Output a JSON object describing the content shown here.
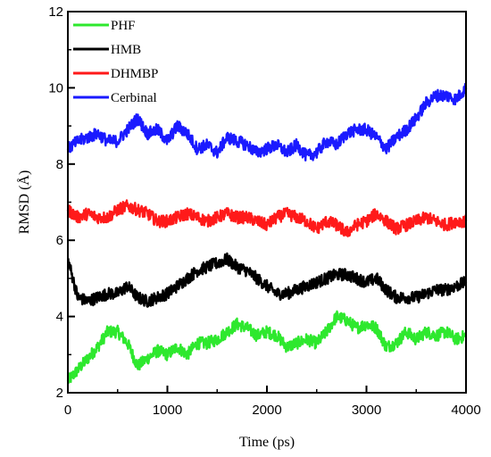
{
  "chart_data": {
    "type": "line",
    "xlabel": "Time (ps)",
    "ylabel": "RMSD (Å)",
    "xlim": [
      0,
      4000
    ],
    "ylim": [
      2,
      12
    ],
    "xticks": [
      "0",
      "1000",
      "2000",
      "3000",
      "4000"
    ],
    "yticks": [
      "2",
      "4",
      "6",
      "8",
      "10",
      "12"
    ],
    "legend_position": "top-left",
    "grid": false,
    "series": [
      {
        "name": "PHF",
        "color": "#2ee82e",
        "x": [
          0,
          100,
          200,
          300,
          400,
          500,
          600,
          700,
          800,
          900,
          1000,
          1100,
          1200,
          1300,
          1400,
          1500,
          1600,
          1700,
          1800,
          1900,
          2000,
          2100,
          2200,
          2300,
          2400,
          2500,
          2600,
          2700,
          2800,
          2900,
          3000,
          3100,
          3200,
          3300,
          3400,
          3500,
          3600,
          3700,
          3800,
          3900,
          4000
        ],
        "y": [
          2.3,
          2.6,
          2.9,
          3.2,
          3.6,
          3.6,
          3.3,
          2.7,
          2.9,
          3.1,
          3.0,
          3.2,
          3.0,
          3.3,
          3.3,
          3.4,
          3.6,
          3.8,
          3.7,
          3.5,
          3.6,
          3.5,
          3.2,
          3.3,
          3.4,
          3.3,
          3.6,
          4.0,
          3.9,
          3.7,
          3.8,
          3.7,
          3.2,
          3.3,
          3.6,
          3.4,
          3.6,
          3.5,
          3.6,
          3.4,
          3.5
        ]
      },
      {
        "name": "HMB",
        "color": "#000000",
        "x": [
          0,
          100,
          200,
          300,
          400,
          500,
          600,
          700,
          800,
          900,
          1000,
          1100,
          1200,
          1300,
          1400,
          1500,
          1600,
          1700,
          1800,
          1900,
          2000,
          2100,
          2200,
          2300,
          2400,
          2500,
          2600,
          2700,
          2800,
          2900,
          3000,
          3100,
          3200,
          3300,
          3400,
          3500,
          3600,
          3700,
          3800,
          3900,
          4000
        ],
        "y": [
          5.5,
          4.5,
          4.4,
          4.5,
          4.6,
          4.6,
          4.8,
          4.5,
          4.4,
          4.5,
          4.6,
          4.8,
          5.0,
          5.2,
          5.3,
          5.4,
          5.5,
          5.3,
          5.2,
          5.0,
          4.8,
          4.6,
          4.6,
          4.7,
          4.8,
          4.9,
          5.0,
          5.1,
          5.1,
          5.0,
          4.9,
          5.0,
          4.7,
          4.5,
          4.5,
          4.5,
          4.6,
          4.7,
          4.7,
          4.8,
          4.9
        ]
      },
      {
        "name": "DHMBP",
        "color": "#ff1a1a",
        "x": [
          0,
          100,
          200,
          300,
          400,
          500,
          600,
          700,
          800,
          900,
          1000,
          1100,
          1200,
          1300,
          1400,
          1500,
          1600,
          1700,
          1800,
          1900,
          2000,
          2100,
          2200,
          2300,
          2400,
          2500,
          2600,
          2700,
          2800,
          2900,
          3000,
          3100,
          3200,
          3300,
          3400,
          3500,
          3600,
          3700,
          3800,
          3900,
          4000
        ],
        "y": [
          6.8,
          6.6,
          6.7,
          6.6,
          6.6,
          6.8,
          6.9,
          6.8,
          6.7,
          6.5,
          6.5,
          6.6,
          6.7,
          6.6,
          6.5,
          6.6,
          6.7,
          6.6,
          6.6,
          6.5,
          6.4,
          6.6,
          6.7,
          6.6,
          6.5,
          6.3,
          6.5,
          6.4,
          6.2,
          6.4,
          6.5,
          6.7,
          6.5,
          6.3,
          6.4,
          6.5,
          6.6,
          6.5,
          6.4,
          6.5,
          6.5
        ]
      },
      {
        "name": "Cerbinal",
        "color": "#1a1aff",
        "x": [
          0,
          100,
          200,
          300,
          400,
          500,
          600,
          700,
          800,
          900,
          1000,
          1100,
          1200,
          1300,
          1400,
          1500,
          1600,
          1700,
          1800,
          1900,
          2000,
          2100,
          2200,
          2300,
          2400,
          2500,
          2600,
          2700,
          2800,
          2900,
          3000,
          3100,
          3200,
          3300,
          3400,
          3500,
          3600,
          3700,
          3800,
          3900,
          4000
        ],
        "y": [
          8.4,
          8.6,
          8.7,
          8.8,
          8.6,
          8.6,
          8.9,
          9.2,
          8.8,
          8.9,
          8.6,
          9.0,
          8.8,
          8.4,
          8.5,
          8.3,
          8.7,
          8.6,
          8.5,
          8.3,
          8.4,
          8.5,
          8.3,
          8.5,
          8.2,
          8.3,
          8.6,
          8.5,
          8.8,
          8.9,
          8.9,
          8.7,
          8.4,
          8.7,
          8.9,
          9.2,
          9.6,
          9.8,
          9.8,
          9.7,
          10.0
        ]
      }
    ]
  }
}
